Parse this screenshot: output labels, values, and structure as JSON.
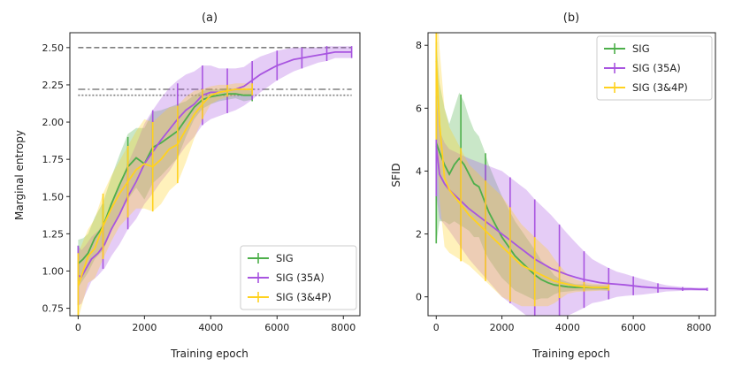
{
  "chart_data": [
    {
      "type": "line",
      "title": "(a)",
      "xlabel": "Training epoch",
      "ylabel": "Marginal entropy",
      "xlim": [
        -250,
        8500
      ],
      "ylim": [
        0.7,
        2.6
      ],
      "xticks": [
        0,
        2000,
        4000,
        6000,
        8000
      ],
      "xtick_labels": [
        "0",
        "2000",
        "4000",
        "6000",
        "8000"
      ],
      "yticks": [
        0.75,
        1.0,
        1.25,
        1.5,
        1.75,
        2.0,
        2.25,
        2.5
      ],
      "ytick_labels": [
        "0.75",
        "1.00",
        "1.25",
        "1.50",
        "1.75",
        "2.00",
        "2.25",
        "2.50"
      ],
      "legend_position": "lower-right",
      "reference_lines": [
        {
          "y": 2.5,
          "style": "dashed",
          "color": "#808080"
        },
        {
          "y": 2.22,
          "style": "dashdot",
          "color": "#808080"
        },
        {
          "y": 2.18,
          "style": "dotted",
          "color": "#808080"
        }
      ],
      "series": [
        {
          "name": "SIG",
          "color": "#4daf4a",
          "x": [
            0,
            150,
            300,
            500,
            750,
            1000,
            1250,
            1500,
            1750,
            2000,
            2250,
            2500,
            2750,
            3000,
            3250,
            3500,
            3750,
            4000,
            4250,
            4500,
            4750,
            5000,
            5250
          ],
          "y": [
            1.05,
            1.08,
            1.12,
            1.22,
            1.3,
            1.45,
            1.58,
            1.7,
            1.76,
            1.72,
            1.83,
            1.86,
            1.9,
            1.94,
            2.02,
            2.1,
            2.15,
            2.17,
            2.18,
            2.19,
            2.19,
            2.18,
            2.18
          ],
          "err": [
            0.16,
            0.14,
            0.13,
            0.14,
            0.16,
            0.18,
            0.2,
            0.22,
            0.2,
            0.24,
            0.24,
            0.22,
            0.2,
            0.18,
            0.12,
            0.08,
            0.06,
            0.05,
            0.04,
            0.04,
            0.03,
            0.04,
            0.03
          ],
          "errbar_x": [
            0,
            750,
            1500,
            2250,
            3000,
            3750,
            4500,
            5250
          ],
          "errbar_err": [
            0.12,
            0.15,
            0.2,
            0.24,
            0.18,
            0.07,
            0.04,
            0.04
          ]
        },
        {
          "name": "SIG (35A)",
          "color": "#a855e0",
          "x": [
            0,
            100,
            250,
            400,
            600,
            800,
            1000,
            1250,
            1500,
            1750,
            2000,
            2250,
            2500,
            2750,
            3000,
            3250,
            3500,
            3750,
            4000,
            4250,
            4500,
            4750,
            5000,
            5250,
            5500,
            5750,
            6000,
            6250,
            6500,
            6750,
            7000,
            7250,
            7500,
            7750,
            8000,
            8250
          ],
          "y": [
            0.97,
            0.96,
            1.02,
            1.08,
            1.12,
            1.18,
            1.28,
            1.38,
            1.5,
            1.6,
            1.72,
            1.8,
            1.88,
            1.95,
            2.02,
            2.08,
            2.12,
            2.18,
            2.2,
            2.2,
            2.21,
            2.22,
            2.24,
            2.28,
            2.32,
            2.35,
            2.38,
            2.4,
            2.42,
            2.43,
            2.44,
            2.45,
            2.46,
            2.47,
            2.47,
            2.47
          ],
          "err": [
            0.2,
            0.18,
            0.16,
            0.15,
            0.15,
            0.16,
            0.18,
            0.2,
            0.22,
            0.25,
            0.27,
            0.28,
            0.28,
            0.28,
            0.26,
            0.24,
            0.22,
            0.2,
            0.18,
            0.16,
            0.15,
            0.14,
            0.13,
            0.13,
            0.12,
            0.11,
            0.1,
            0.09,
            0.08,
            0.07,
            0.06,
            0.05,
            0.05,
            0.04,
            0.04,
            0.04
          ],
          "errbar_x": [
            0,
            750,
            1500,
            2250,
            3000,
            3750,
            4500,
            5250,
            6000,
            6750,
            7500,
            8250
          ],
          "errbar_err": [
            0.2,
            0.15,
            0.22,
            0.28,
            0.24,
            0.2,
            0.15,
            0.13,
            0.1,
            0.07,
            0.05,
            0.04
          ]
        },
        {
          "name": "SIG (3&4P)",
          "color": "#ffd21f",
          "x": [
            0,
            150,
            300,
            500,
            750,
            1000,
            1250,
            1500,
            1750,
            2000,
            2250,
            2500,
            2750,
            3000,
            3250,
            3500,
            3750,
            4000,
            4250,
            4500,
            4750,
            5000,
            5250
          ],
          "y": [
            0.9,
            1.0,
            1.1,
            1.15,
            1.3,
            1.42,
            1.52,
            1.6,
            1.68,
            1.72,
            1.7,
            1.75,
            1.82,
            1.85,
            1.95,
            2.05,
            2.12,
            2.18,
            2.2,
            2.21,
            2.22,
            2.22,
            2.22
          ],
          "err": [
            0.22,
            0.2,
            0.18,
            0.2,
            0.22,
            0.22,
            0.22,
            0.24,
            0.26,
            0.3,
            0.3,
            0.3,
            0.28,
            0.26,
            0.22,
            0.16,
            0.1,
            0.06,
            0.05,
            0.04,
            0.04,
            0.04,
            0.04
          ],
          "errbar_x": [
            0,
            750,
            1500,
            2250,
            3000,
            3750,
            4500,
            5250
          ],
          "errbar_err": [
            0.22,
            0.22,
            0.24,
            0.3,
            0.26,
            0.1,
            0.04,
            0.04
          ]
        }
      ]
    },
    {
      "type": "line",
      "title": "(b)",
      "xlabel": "Training epoch",
      "ylabel": "SFID",
      "xlim": [
        -250,
        8500
      ],
      "ylim": [
        -0.6,
        8.4
      ],
      "xticks": [
        0,
        2000,
        4000,
        6000,
        8000
      ],
      "xtick_labels": [
        "0",
        "2000",
        "4000",
        "6000",
        "8000"
      ],
      "yticks": [
        0,
        2,
        4,
        6,
        8
      ],
      "ytick_labels": [
        "0",
        "2",
        "4",
        "6",
        "8"
      ],
      "legend_position": "top-right",
      "series": [
        {
          "name": "SIG",
          "color": "#4daf4a",
          "x": [
            0,
            100,
            250,
            400,
            550,
            700,
            850,
            1000,
            1150,
            1300,
            1450,
            1600,
            1800,
            2000,
            2200,
            2400,
            2600,
            2800,
            3000,
            3200,
            3400,
            3600,
            3800,
            4000,
            4250,
            4500,
            4750,
            5000,
            5250
          ],
          "y": [
            4.9,
            4.6,
            4.2,
            3.9,
            4.2,
            4.4,
            4.2,
            3.9,
            3.6,
            3.5,
            3.1,
            2.7,
            2.3,
            1.9,
            1.6,
            1.3,
            1.1,
            0.9,
            0.7,
            0.55,
            0.45,
            0.38,
            0.35,
            0.32,
            0.3,
            0.3,
            0.29,
            0.29,
            0.28
          ],
          "err": [
            3.2,
            2.2,
            1.8,
            1.6,
            1.8,
            2.1,
            2.0,
            1.8,
            1.7,
            1.6,
            1.6,
            1.5,
            1.4,
            1.3,
            1.2,
            1.1,
            1.0,
            0.9,
            0.8,
            0.6,
            0.5,
            0.3,
            0.2,
            0.15,
            0.1,
            0.1,
            0.08,
            0.08,
            0.08
          ],
          "errbar_x": [
            0,
            750,
            1500,
            2250,
            3000,
            3750,
            4500,
            5250
          ],
          "errbar_err": [
            3.2,
            2.1,
            1.6,
            1.2,
            0.8,
            0.2,
            0.1,
            0.08
          ]
        },
        {
          "name": "SIG (35A)",
          "color": "#a855e0",
          "x": [
            0,
            100,
            250,
            400,
            600,
            800,
            1000,
            1250,
            1500,
            1750,
            2000,
            2250,
            2500,
            2750,
            3000,
            3250,
            3500,
            3750,
            4000,
            4250,
            4500,
            4750,
            5000,
            5250,
            5500,
            5750,
            6000,
            6250,
            6500,
            6750,
            7000,
            7250,
            7500,
            7750,
            8000,
            8250
          ],
          "y": [
            4.8,
            3.9,
            3.6,
            3.4,
            3.2,
            3.0,
            2.8,
            2.6,
            2.4,
            2.2,
            2.0,
            1.8,
            1.6,
            1.4,
            1.2,
            1.05,
            0.9,
            0.8,
            0.7,
            0.62,
            0.55,
            0.5,
            0.45,
            0.42,
            0.4,
            0.38,
            0.35,
            0.32,
            0.3,
            0.28,
            0.27,
            0.26,
            0.25,
            0.25,
            0.24,
            0.24
          ],
          "err": [
            1.6,
            1.4,
            1.3,
            1.3,
            1.4,
            1.5,
            1.6,
            1.7,
            1.8,
            1.9,
            2.0,
            2.0,
            2.0,
            2.0,
            1.9,
            1.8,
            1.7,
            1.5,
            1.3,
            1.1,
            0.9,
            0.7,
            0.6,
            0.5,
            0.4,
            0.35,
            0.3,
            0.25,
            0.2,
            0.15,
            0.1,
            0.08,
            0.06,
            0.05,
            0.05,
            0.05
          ],
          "errbar_x": [
            0,
            750,
            1500,
            2250,
            3000,
            3750,
            4500,
            5250,
            6000,
            6750,
            7500,
            8250
          ],
          "errbar_err": [
            1.6,
            1.5,
            1.8,
            2.0,
            1.9,
            1.5,
            0.9,
            0.5,
            0.3,
            0.15,
            0.06,
            0.05
          ]
        },
        {
          "name": "SIG (3&4P)",
          "color": "#ffd21f",
          "x": [
            0,
            100,
            250,
            400,
            550,
            700,
            850,
            1000,
            1200,
            1400,
            1600,
            1800,
            2000,
            2200,
            2400,
            2600,
            2800,
            3000,
            3200,
            3400,
            3600,
            3800,
            4000,
            4250,
            4500,
            4750,
            5000,
            5250
          ],
          "y": [
            7.5,
            5.5,
            3.8,
            3.4,
            3.2,
            3.0,
            2.8,
            2.6,
            2.4,
            2.2,
            2.0,
            1.8,
            1.6,
            1.4,
            1.2,
            1.0,
            0.9,
            0.8,
            0.7,
            0.6,
            0.5,
            0.45,
            0.4,
            0.35,
            0.32,
            0.3,
            0.3,
            0.3
          ],
          "err": [
            2.5,
            2.4,
            2.2,
            2.0,
            1.9,
            1.8,
            1.7,
            1.6,
            1.6,
            1.6,
            1.6,
            1.6,
            1.6,
            1.5,
            1.4,
            1.3,
            1.2,
            1.1,
            1.0,
            0.9,
            0.7,
            0.5,
            0.3,
            0.2,
            0.15,
            0.12,
            0.1,
            0.1
          ],
          "errbar_x": [
            0,
            750,
            1500,
            2250,
            3000,
            3750,
            4500,
            5250
          ],
          "errbar_err": [
            2.5,
            1.8,
            1.6,
            1.5,
            1.1,
            0.5,
            0.15,
            0.1
          ]
        }
      ]
    }
  ]
}
